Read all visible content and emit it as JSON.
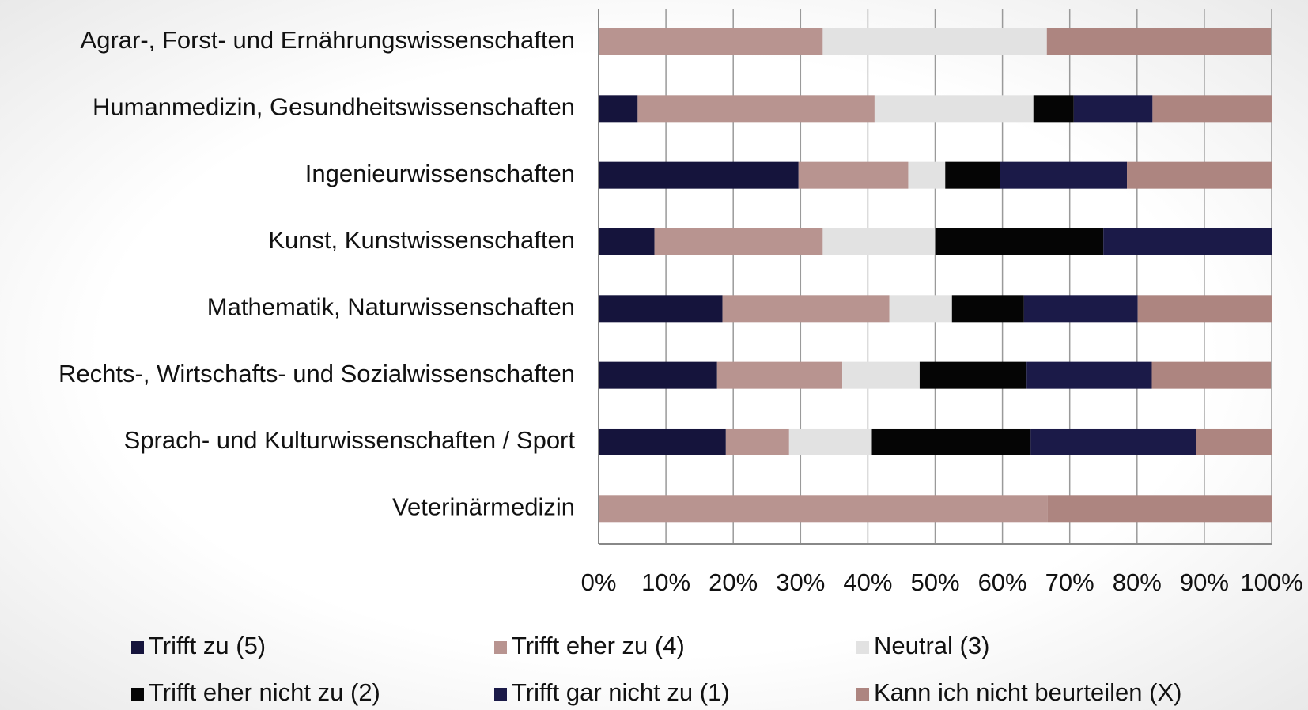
{
  "chart_data": {
    "type": "stacked_barh",
    "categories": [
      "Agrar-, Forst- und Ernährungswissenschaften",
      "Humanmedizin, Gesundheitswissenschaften",
      "Ingenieurwissenschaften",
      "Kunst, Kunstwissenschaften",
      "Mathematik, Naturwissenschaften",
      "Rechts-, Wirtschafts- und Sozialwissenschaften",
      "Sprach- und Kulturwissenschaften / Sport",
      "Veterinärmedizin"
    ],
    "series": [
      {
        "name": "Trifft zu (5)",
        "color": "#15143c",
        "values": [
          0,
          5.8,
          29.7,
          8.3,
          18.4,
          17.6,
          18.9,
          0
        ]
      },
      {
        "name": "Trifft eher zu (4)",
        "color": "#b89490",
        "values": [
          33.3,
          35.2,
          16.3,
          25,
          24.8,
          18.6,
          9.4,
          66.7
        ]
      },
      {
        "name": "Neutral (3)",
        "color": "#e2e2e2",
        "values": [
          33.3,
          23.6,
          5.5,
          16.7,
          9.3,
          11.5,
          12.3,
          0
        ]
      },
      {
        "name": "Trifft eher nicht zu (2)",
        "color": "#050505",
        "values": [
          0,
          6.0,
          8.1,
          25,
          10.7,
          15.9,
          23.6,
          0
        ]
      },
      {
        "name": "Trifft gar nicht zu (1)",
        "color": "#1b1a48",
        "values": [
          0,
          11.7,
          18.9,
          25,
          16.9,
          18.6,
          24.6,
          0
        ]
      },
      {
        "name": "Kann ich nicht beurteilen (X)",
        "color": "#ad8580",
        "values": [
          33.3,
          17.7,
          21.5,
          0,
          20.0,
          17.7,
          11.3,
          33.3
        ]
      }
    ],
    "xlim": [
      0,
      100
    ],
    "xticks": [
      {
        "value": 0,
        "label": "0%"
      },
      {
        "value": 10,
        "label": "10%"
      },
      {
        "value": 20,
        "label": "20%"
      },
      {
        "value": 30,
        "label": "30%"
      },
      {
        "value": 40,
        "label": "40%"
      },
      {
        "value": 50,
        "label": "50%"
      },
      {
        "value": 60,
        "label": "60%"
      },
      {
        "value": 70,
        "label": "70%"
      },
      {
        "value": 80,
        "label": "80%"
      },
      {
        "value": 90,
        "label": "90%"
      },
      {
        "value": 100,
        "label": "100%"
      }
    ],
    "grid": true,
    "legend": "bottom"
  }
}
